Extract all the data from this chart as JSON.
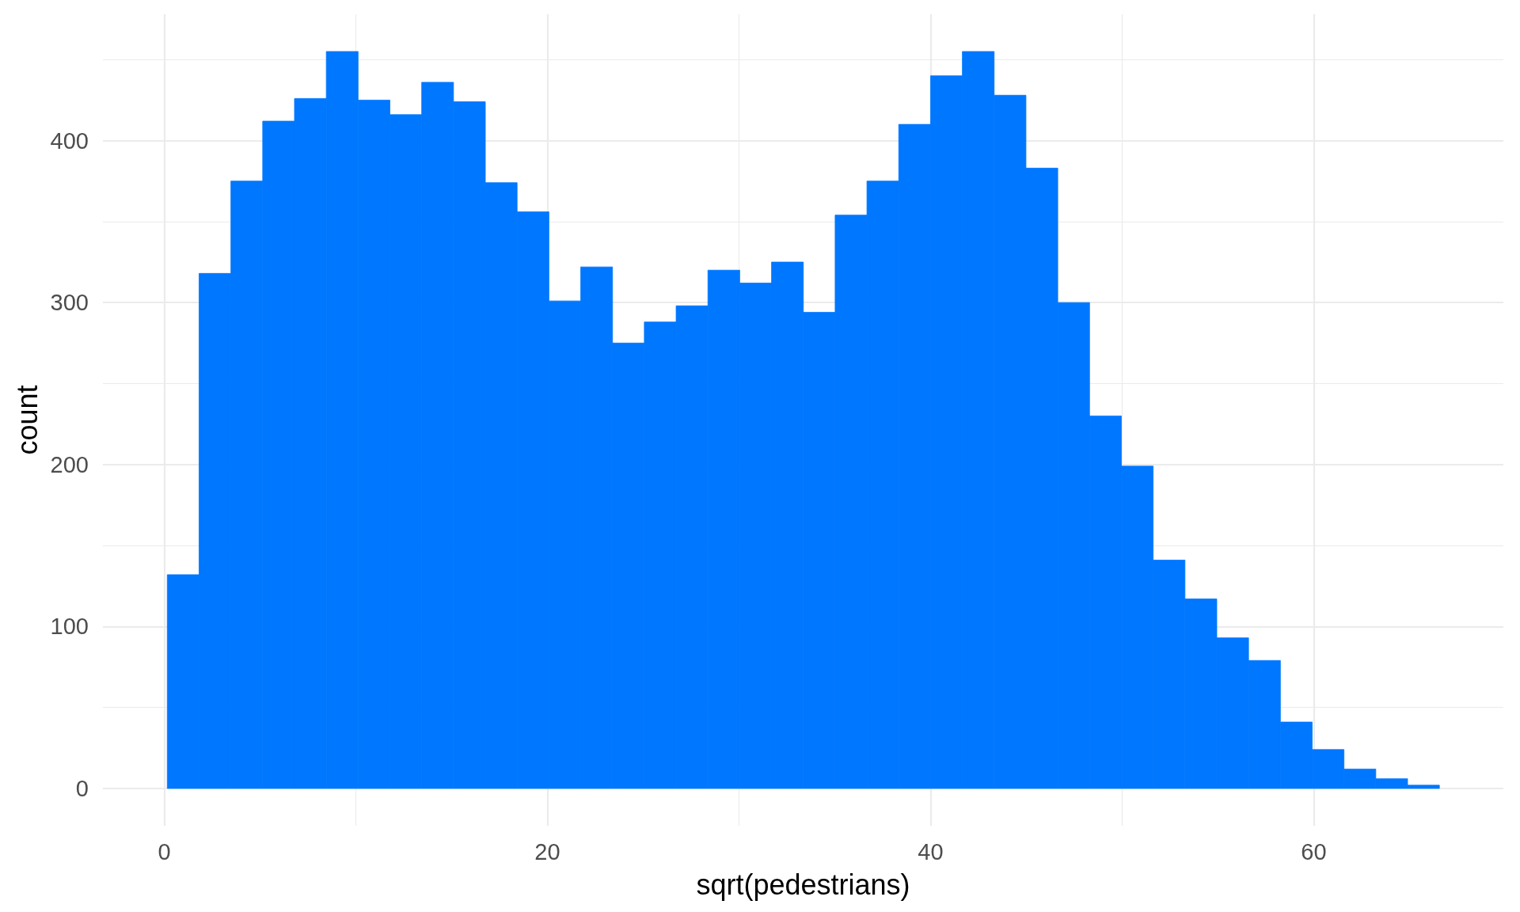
{
  "chart_data": {
    "type": "histogram",
    "xlabel": "sqrt(pedestrians)",
    "ylabel": "count",
    "bins": [
      0.16,
      1.82,
      3.48,
      5.14,
      6.8,
      8.46,
      10.12,
      11.78,
      13.44,
      15.1,
      16.76,
      18.42,
      20.08,
      21.74,
      23.4,
      25.06,
      26.72,
      28.38,
      30.04,
      31.7,
      33.36,
      35.02,
      36.68,
      38.34,
      40.0,
      41.66,
      43.32,
      44.98,
      46.64,
      48.3,
      49.96,
      51.62,
      53.28,
      54.94,
      56.6,
      58.26,
      59.92,
      61.58,
      63.24,
      64.9,
      66.56
    ],
    "values": [
      132,
      318,
      375,
      412,
      426,
      455,
      425,
      416,
      436,
      424,
      374,
      356,
      301,
      322,
      275,
      288,
      298,
      320,
      312,
      325,
      294,
      354,
      375,
      410,
      440,
      455,
      428,
      383,
      300,
      230,
      199,
      141,
      117,
      93,
      79,
      41,
      24,
      12,
      6,
      2
    ],
    "color": "#0077ff",
    "xlim": [
      -3.2,
      69.9
    ],
    "ylim": [
      -23,
      478
    ],
    "xticks": [
      0,
      {
        "value": 10,
        "label": null
      },
      20,
      {
        "value": 30,
        "label": null
      },
      40,
      {
        "value": 50,
        "label": null
      },
      60
    ],
    "yticks": [
      0,
      {
        "value": 50,
        "label": null
      },
      100,
      {
        "value": 150,
        "label": null
      },
      200,
      {
        "value": 250,
        "label": null
      },
      300,
      {
        "value": 350,
        "label": null
      },
      400,
      {
        "value": 450,
        "label": null
      }
    ],
    "grid": true
  }
}
